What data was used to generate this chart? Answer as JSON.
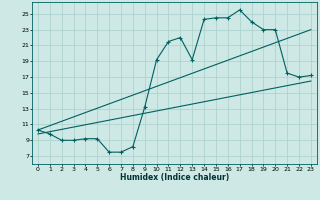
{
  "xlabel": "Humidex (Indice chaleur)",
  "ylabel": "",
  "bg_color": "#cde8e5",
  "line_color": "#006060",
  "grid_color": "#aacfcc",
  "x_ticks": [
    0,
    1,
    2,
    3,
    4,
    5,
    6,
    7,
    8,
    9,
    10,
    11,
    12,
    13,
    14,
    15,
    16,
    17,
    18,
    19,
    20,
    21,
    22,
    23
  ],
  "y_ticks": [
    7,
    9,
    11,
    13,
    15,
    17,
    19,
    21,
    23,
    25
  ],
  "xlim": [
    -0.5,
    23.5
  ],
  "ylim": [
    6.0,
    26.5
  ],
  "curve1_x": [
    0,
    1,
    2,
    3,
    4,
    5,
    6,
    7,
    8,
    9,
    10,
    11,
    12,
    13,
    14,
    15,
    16,
    17,
    18,
    19,
    20,
    21,
    22,
    23
  ],
  "curve1_y": [
    10.3,
    9.8,
    9.0,
    9.0,
    9.2,
    9.2,
    7.5,
    7.5,
    8.2,
    13.2,
    19.2,
    21.5,
    22.0,
    19.2,
    24.3,
    24.5,
    24.5,
    25.5,
    24.0,
    23.0,
    23.0,
    17.5,
    17.0,
    17.2
  ],
  "curve2_x": [
    0,
    23
  ],
  "curve2_y": [
    9.8,
    16.5
  ],
  "curve3_x": [
    0,
    23
  ],
  "curve3_y": [
    10.3,
    23.0
  ]
}
